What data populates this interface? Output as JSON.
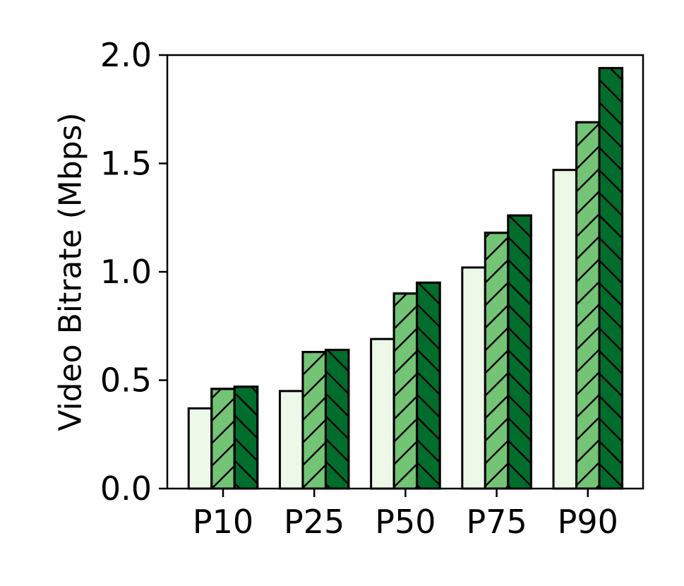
{
  "chart_data": {
    "type": "bar",
    "title": "",
    "xlabel": "",
    "ylabel": "Video Bitrate (Mbps)",
    "categories": [
      "P10",
      "P25",
      "P50",
      "P75",
      "P90"
    ],
    "ylim": [
      0,
      2.0
    ],
    "yticks": [
      "0.0",
      "0.5",
      "1.0",
      "1.5",
      "2.0"
    ],
    "grid": false,
    "legend": "none",
    "series": [
      {
        "values": [
          0.37,
          0.45,
          0.69,
          1.02,
          1.47
        ],
        "color": "#edf8e9",
        "hatch": "none"
      },
      {
        "values": [
          0.46,
          0.63,
          0.9,
          1.18,
          1.69
        ],
        "color": "#74c476",
        "hatch": "forward-diagonal"
      },
      {
        "values": [
          0.47,
          0.64,
          0.95,
          1.26,
          1.94
        ],
        "color": "#006d2c",
        "hatch": "backward-diagonal"
      }
    ]
  }
}
